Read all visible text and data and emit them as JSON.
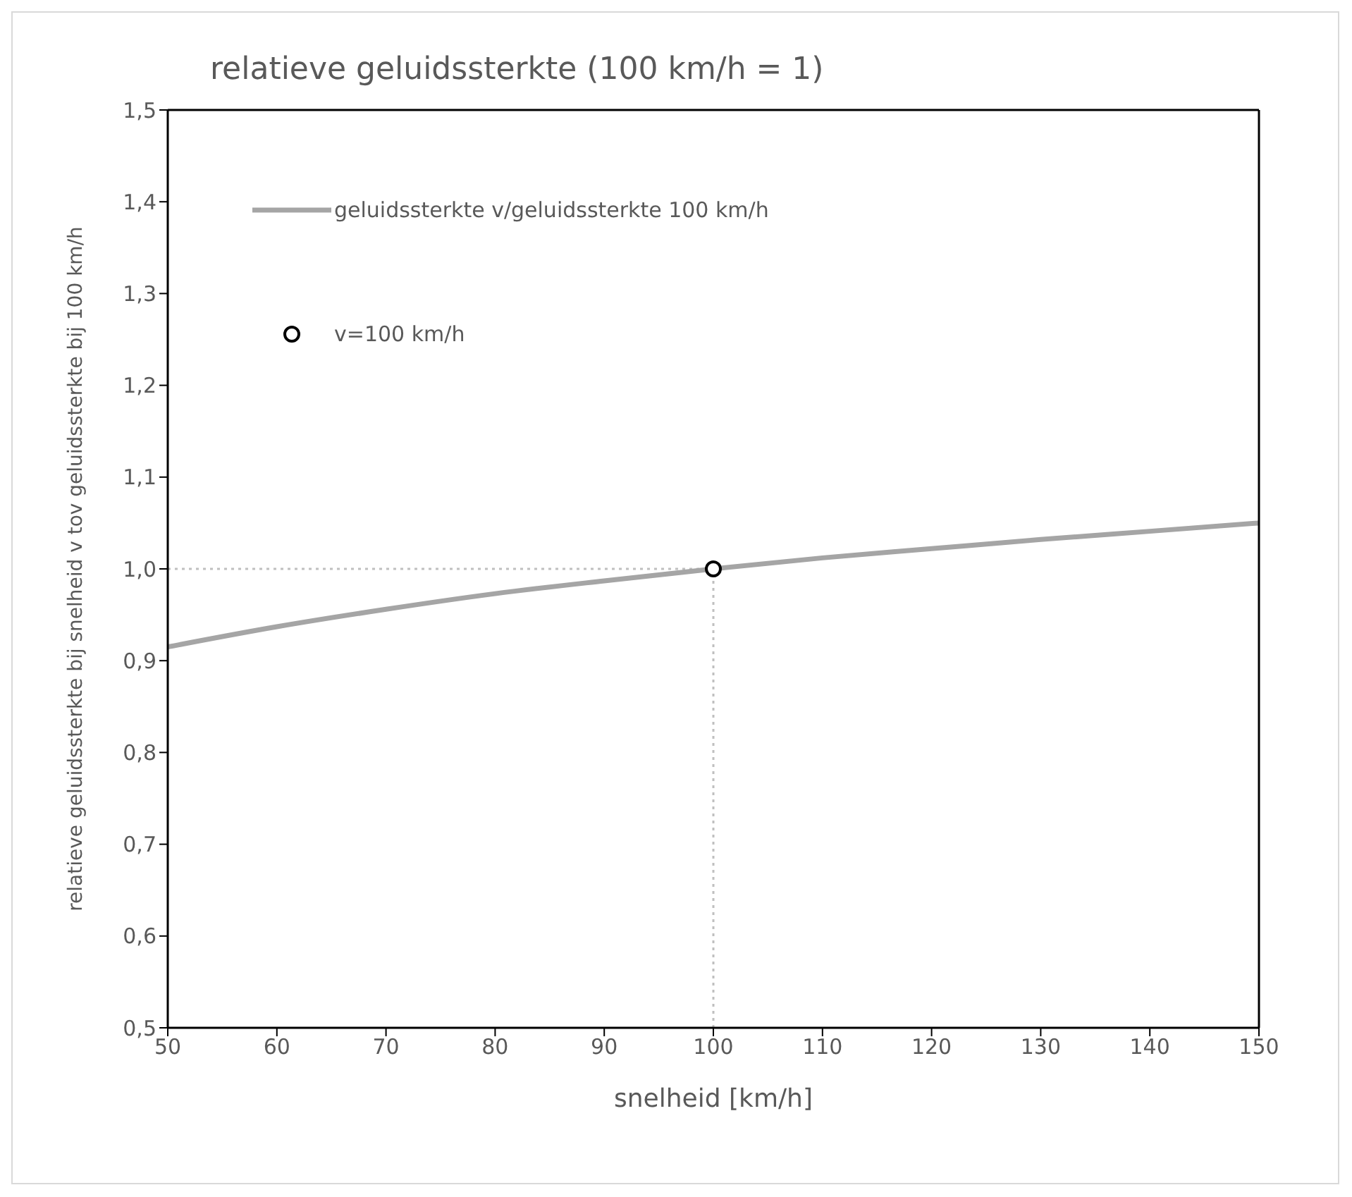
{
  "chart_data": {
    "type": "line",
    "title": "relatieve geluidssterkte (100 km/h = 1)",
    "xlabel": "snelheid [km/h]",
    "ylabel": "relatieve geluidssterkte bij snelheid v tov geluidssterkte  bij 100 km/h",
    "x": [
      50,
      60,
      70,
      80,
      90,
      100,
      110,
      120,
      130,
      140,
      150
    ],
    "series": [
      {
        "name": "geluidssterkte v/geluidssterkte 100 km/h",
        "color": "#a5a5a5",
        "values": [
          0.915,
          0.937,
          0.956,
          0.973,
          0.987,
          1.0,
          1.012,
          1.022,
          1.032,
          1.041,
          1.05
        ]
      },
      {
        "name": "v=100 km/h",
        "type": "scatter",
        "color": "#000000",
        "marker": "circle",
        "x": [
          100
        ],
        "values": [
          1.0
        ]
      }
    ],
    "xlim": [
      50,
      150
    ],
    "xticks": [
      50,
      60,
      70,
      80,
      90,
      100,
      110,
      120,
      130,
      140,
      150
    ],
    "ylim": [
      0.5,
      1.5
    ],
    "yticks": [
      {
        "value": 0.5,
        "label": "0,5"
      },
      {
        "value": 0.6,
        "label": "0,6"
      },
      {
        "value": 0.7,
        "label": "0,7"
      },
      {
        "value": 0.8,
        "label": "0,8"
      },
      {
        "value": 0.9,
        "label": "0,9"
      },
      {
        "value": 1.0,
        "label": "1,0"
      },
      {
        "value": 1.1,
        "label": "1,1"
      },
      {
        "value": 1.2,
        "label": "1,2"
      },
      {
        "value": 1.3,
        "label": "1,3"
      },
      {
        "value": 1.4,
        "label": "1,4"
      },
      {
        "value": 1.5,
        "label": "1,5"
      }
    ],
    "ref_lines": [
      {
        "axis": "x",
        "value": 100,
        "color": "#bfbfbf",
        "line_style": "dotted"
      },
      {
        "axis": "y",
        "value": 1.0,
        "color": "#bfbfbf",
        "line_style": "dotted"
      }
    ],
    "legend": "top left"
  }
}
